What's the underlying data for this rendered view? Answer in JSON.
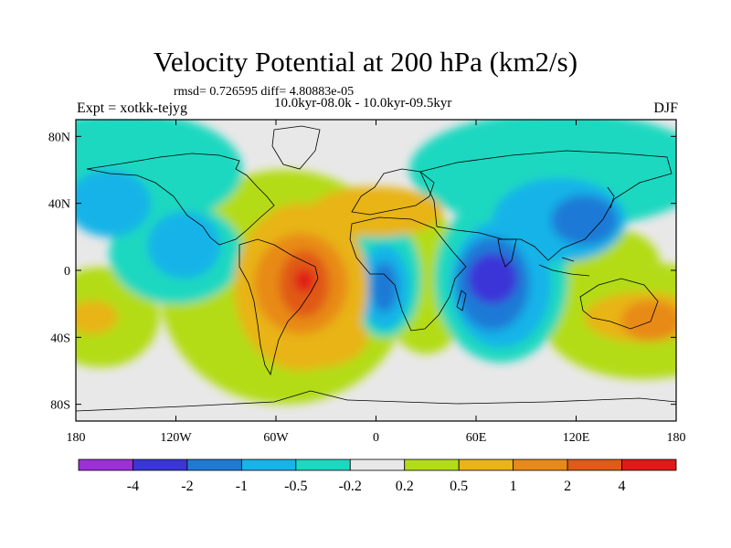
{
  "title": "Velocity Potential at 200 hPa (km2/s)",
  "stats_line": "rmsd= 0.726595 diff= 4.80883e-05",
  "expt_label": "Expt = xotkk-tejyg",
  "period_label": "10.0kyr-08.0k - 10.0kyr-09.5kyr",
  "season_label": "DJF",
  "axes": {
    "y_ticks": [
      {
        "label": "80N",
        "lat": 80
      },
      {
        "label": "40N",
        "lat": 40
      },
      {
        "label": "0",
        "lat": 0
      },
      {
        "label": "40S",
        "lat": -40
      },
      {
        "label": "80S",
        "lat": -80
      }
    ],
    "x_ticks": [
      {
        "label": "180",
        "lon": -180
      },
      {
        "label": "120W",
        "lon": -120
      },
      {
        "label": "60W",
        "lon": -60
      },
      {
        "label": "0",
        "lon": 0
      },
      {
        "label": "60E",
        "lon": 60
      },
      {
        "label": "120E",
        "lon": 120
      },
      {
        "label": "180",
        "lon": 180
      }
    ]
  },
  "colorbar": {
    "colors": [
      "#9b30d8",
      "#3a35d8",
      "#1f7ad6",
      "#18b3e8",
      "#1cd8c0",
      "#e8e8e8",
      "#b3dc18",
      "#e8b418",
      "#e88a18",
      "#e05a18",
      "#e01a18"
    ],
    "labels": [
      "-4",
      "-2",
      "-1",
      "-0.5",
      "-0.2",
      "0.2",
      "0.5",
      "1",
      "2",
      "4"
    ]
  },
  "chart_data": {
    "type": "map_contour",
    "variable": "Velocity Potential at 200 hPa",
    "units": "km2/s",
    "levels": [
      -4,
      -2,
      -1,
      -0.5,
      -0.2,
      0.2,
      0.5,
      1,
      2,
      4
    ],
    "xlim": [
      -180,
      180
    ],
    "ylim": [
      -90,
      90
    ],
    "features": [
      {
        "name": "south-america-max",
        "lon": -43,
        "lat": -8,
        "value": 4
      },
      {
        "name": "south-atlantic-max",
        "lon": -35,
        "lat": -40,
        "value": 1
      },
      {
        "name": "mediterranean-max",
        "lon": 0,
        "lat": 38,
        "value": 1
      },
      {
        "name": "west-pacific-south-max",
        "lon": 155,
        "lat": -30,
        "value": 1
      },
      {
        "name": "east-pacific-south-max",
        "lon": -170,
        "lat": -30,
        "value": 1
      },
      {
        "name": "indian-ocean-min",
        "lon": 70,
        "lat": -5,
        "value": -2
      },
      {
        "name": "gulf-of-guinea-min",
        "lon": 5,
        "lat": -10,
        "value": -1
      },
      {
        "name": "maritime-continent-min",
        "lon": 125,
        "lat": 30,
        "value": -1
      },
      {
        "name": "north-pacific-min",
        "lon": -145,
        "lat": 30,
        "value": -1
      },
      {
        "name": "east-pacific-min",
        "lon": -110,
        "lat": 10,
        "value": -1
      },
      {
        "name": "russia-min",
        "lon": 95,
        "lat": 45,
        "value": -0.5
      }
    ]
  }
}
